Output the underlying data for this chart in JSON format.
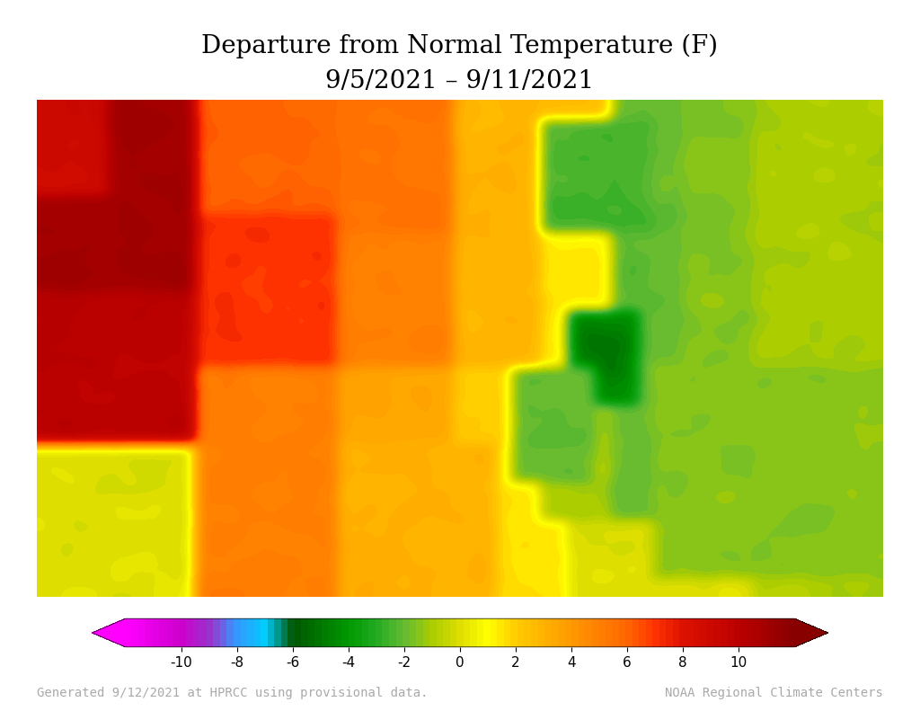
{
  "title_line1": "Departure from Normal Temperature (F)",
  "title_line2": "9/5/2021 – 9/11/2021",
  "footer_left": "Generated 9/12/2021 at HPRCC using provisional data.",
  "footer_right": "NOAA Regional Climate Centers",
  "colorbar_ticks": [
    -10,
    -8,
    -6,
    -4,
    -2,
    0,
    2,
    4,
    6,
    8,
    10
  ],
  "colormap_colors": [
    "#ff00ff",
    "#cc00cc",
    "#9933cc",
    "#3399ff",
    "#00ccff",
    "#005500",
    "#007700",
    "#009900",
    "#22aa22",
    "#66bb33",
    "#aacc00",
    "#dddd00",
    "#ffff00",
    "#ffcc00",
    "#ff9900",
    "#ff6600",
    "#ff3300",
    "#dd1100",
    "#bb0000",
    "#880000"
  ],
  "colormap_positions": [
    -12,
    -10,
    -9,
    -8,
    -7,
    -6,
    -5,
    -4,
    -3,
    -2,
    -1,
    0,
    1,
    2,
    4,
    6,
    7,
    8,
    10,
    12
  ],
  "vmin": -12,
  "vmax": 12,
  "background_color": "#ffffff",
  "map_extent_lon": [
    -125,
    -66
  ],
  "map_extent_lat": [
    24,
    50
  ],
  "title_fontsize": 20,
  "footer_fontsize": 10,
  "footer_color": "#aaaaaa"
}
